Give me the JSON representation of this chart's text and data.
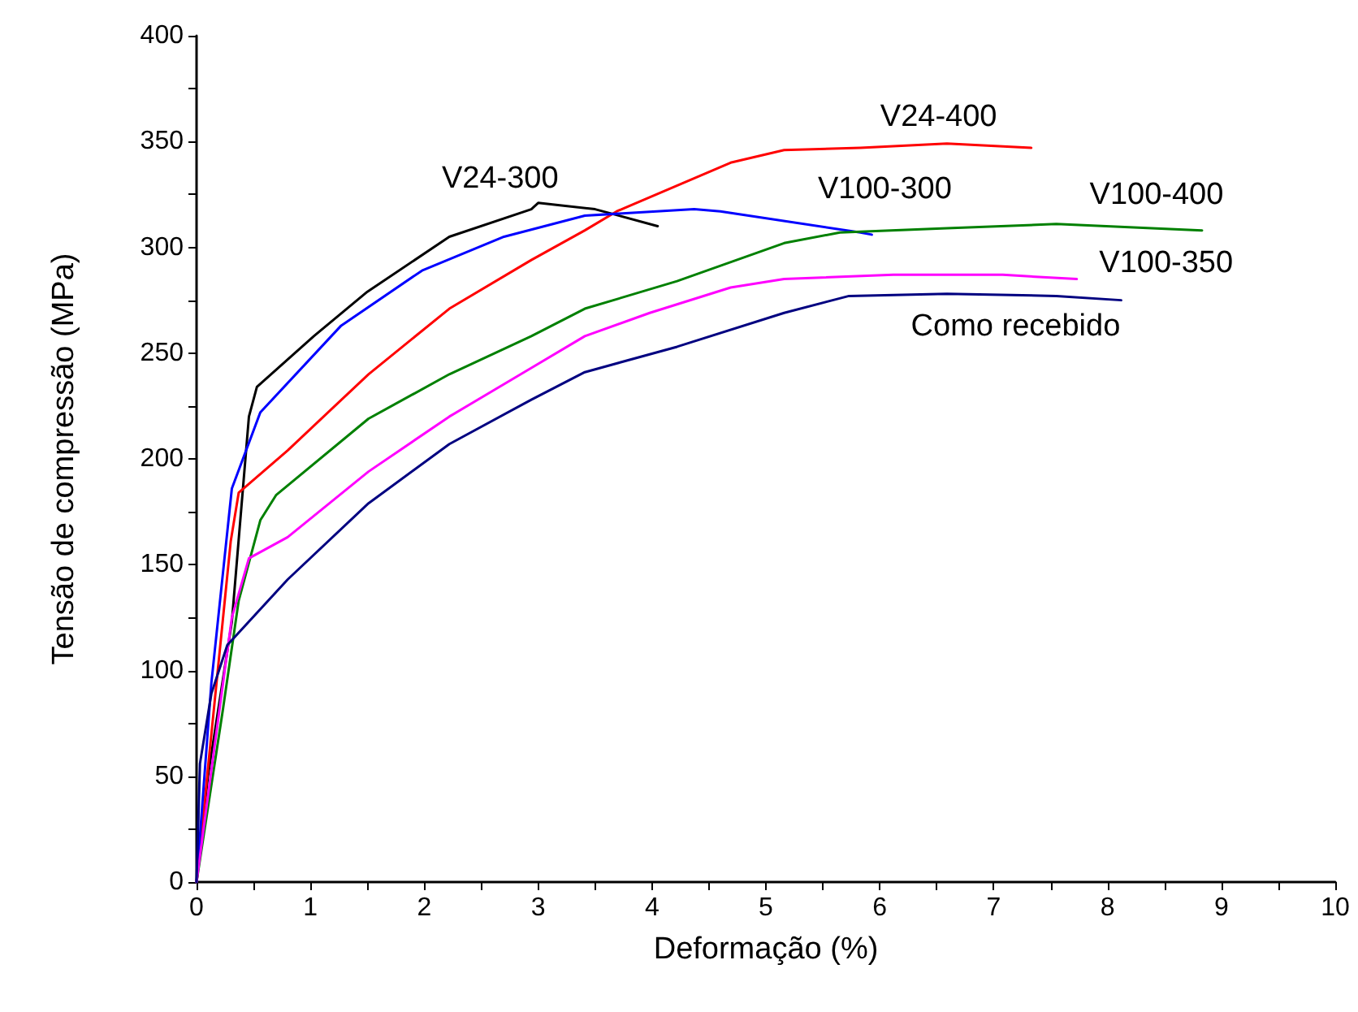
{
  "chart_data": {
    "type": "line",
    "xlabel": "Deformação (%)",
    "ylabel": "Tensão de compressão (MPa)",
    "xlim": [
      0,
      10
    ],
    "ylim": [
      0,
      400
    ],
    "xticks": [
      0,
      {
        "value": 0.5,
        "label": null
      },
      1,
      {
        "value": 1.5,
        "label": null
      },
      2,
      {
        "value": 2.5,
        "label": null
      },
      3,
      {
        "value": 3.5,
        "label": null
      },
      4,
      {
        "value": 4.5,
        "label": null
      },
      5,
      {
        "value": 5.5,
        "label": null
      },
      6,
      {
        "value": 6.5,
        "label": null
      },
      7,
      {
        "value": 7.5,
        "label": null
      },
      8,
      {
        "value": 8.5,
        "label": null
      },
      9,
      {
        "value": 9.5,
        "label": null
      },
      10
    ],
    "yticks": [
      0,
      {
        "value": 25,
        "label": null
      },
      50,
      {
        "value": 75,
        "label": null
      },
      100,
      {
        "value": 125,
        "label": null
      },
      150,
      {
        "value": 175,
        "label": null
      },
      200,
      {
        "value": 225,
        "label": null
      },
      250,
      {
        "value": 275,
        "label": null
      },
      300,
      {
        "value": 325,
        "label": null
      },
      350,
      {
        "value": 375,
        "label": null
      },
      400
    ],
    "grid": false,
    "legend": false,
    "marker": "none",
    "line_style": "solid",
    "series": [
      {
        "name": "V24-300",
        "color": "#000000",
        "x": [
          0,
          0.1,
          0.31,
          0.46,
          0.53,
          1.03,
          1.5,
          2.22,
          2.94,
          3.0,
          3.5,
          4.05
        ],
        "values": [
          0,
          50,
          123,
          220,
          234,
          258,
          279,
          305,
          318,
          321,
          318,
          310
        ]
      },
      {
        "name": "V24-400",
        "color": "#ff0000",
        "x": [
          0,
          0.3,
          0.37,
          0.8,
          1.51,
          2.22,
          2.94,
          3.41,
          3.69,
          4.69,
          5.16,
          5.83,
          6.59,
          7.33
        ],
        "values": [
          0,
          161,
          184,
          204,
          240,
          271,
          294,
          308,
          317,
          340,
          346,
          347,
          349,
          347
        ]
      },
      {
        "name": "V100-300",
        "color": "#0000ff",
        "x": [
          0,
          0.13,
          0.31,
          0.56,
          1.27,
          1.98,
          2.7,
          3.41,
          4.37,
          4.6,
          5.83,
          5.93
        ],
        "values": [
          0,
          94,
          186,
          222,
          263,
          289,
          305,
          315,
          318,
          317,
          307,
          306
        ]
      },
      {
        "name": "V100-400",
        "color": "#008000",
        "x": [
          0,
          0.23,
          0.37,
          0.56,
          0.7,
          1.51,
          2.22,
          2.94,
          3.41,
          4.22,
          5.16,
          5.65,
          6.59,
          7.55,
          8.83
        ],
        "values": [
          0,
          81,
          133,
          171,
          183,
          219,
          240,
          258,
          271,
          284,
          302,
          307,
          309,
          311,
          308
        ]
      },
      {
        "name": "V100-350",
        "color": "#ff00ff",
        "x": [
          0,
          0.17,
          0.31,
          0.46,
          0.8,
          1.51,
          2.22,
          2.94,
          3.41,
          3.98,
          4.69,
          5.16,
          6.12,
          7.08,
          7.73
        ],
        "values": [
          0,
          69,
          125,
          153,
          163,
          194,
          220,
          243,
          258,
          269,
          281,
          285,
          287,
          287,
          285
        ]
      },
      {
        "name": "Como recebido",
        "color": "#000080",
        "x": [
          0,
          0.03,
          0.13,
          0.27,
          0.8,
          1.51,
          2.22,
          2.94,
          3.41,
          4.22,
          5.16,
          5.73,
          6.59,
          7.55,
          8.12
        ],
        "values": [
          0,
          56,
          89,
          112,
          143,
          179,
          207,
          228,
          241,
          253,
          269,
          277,
          278,
          277,
          275
        ]
      }
    ]
  }
}
